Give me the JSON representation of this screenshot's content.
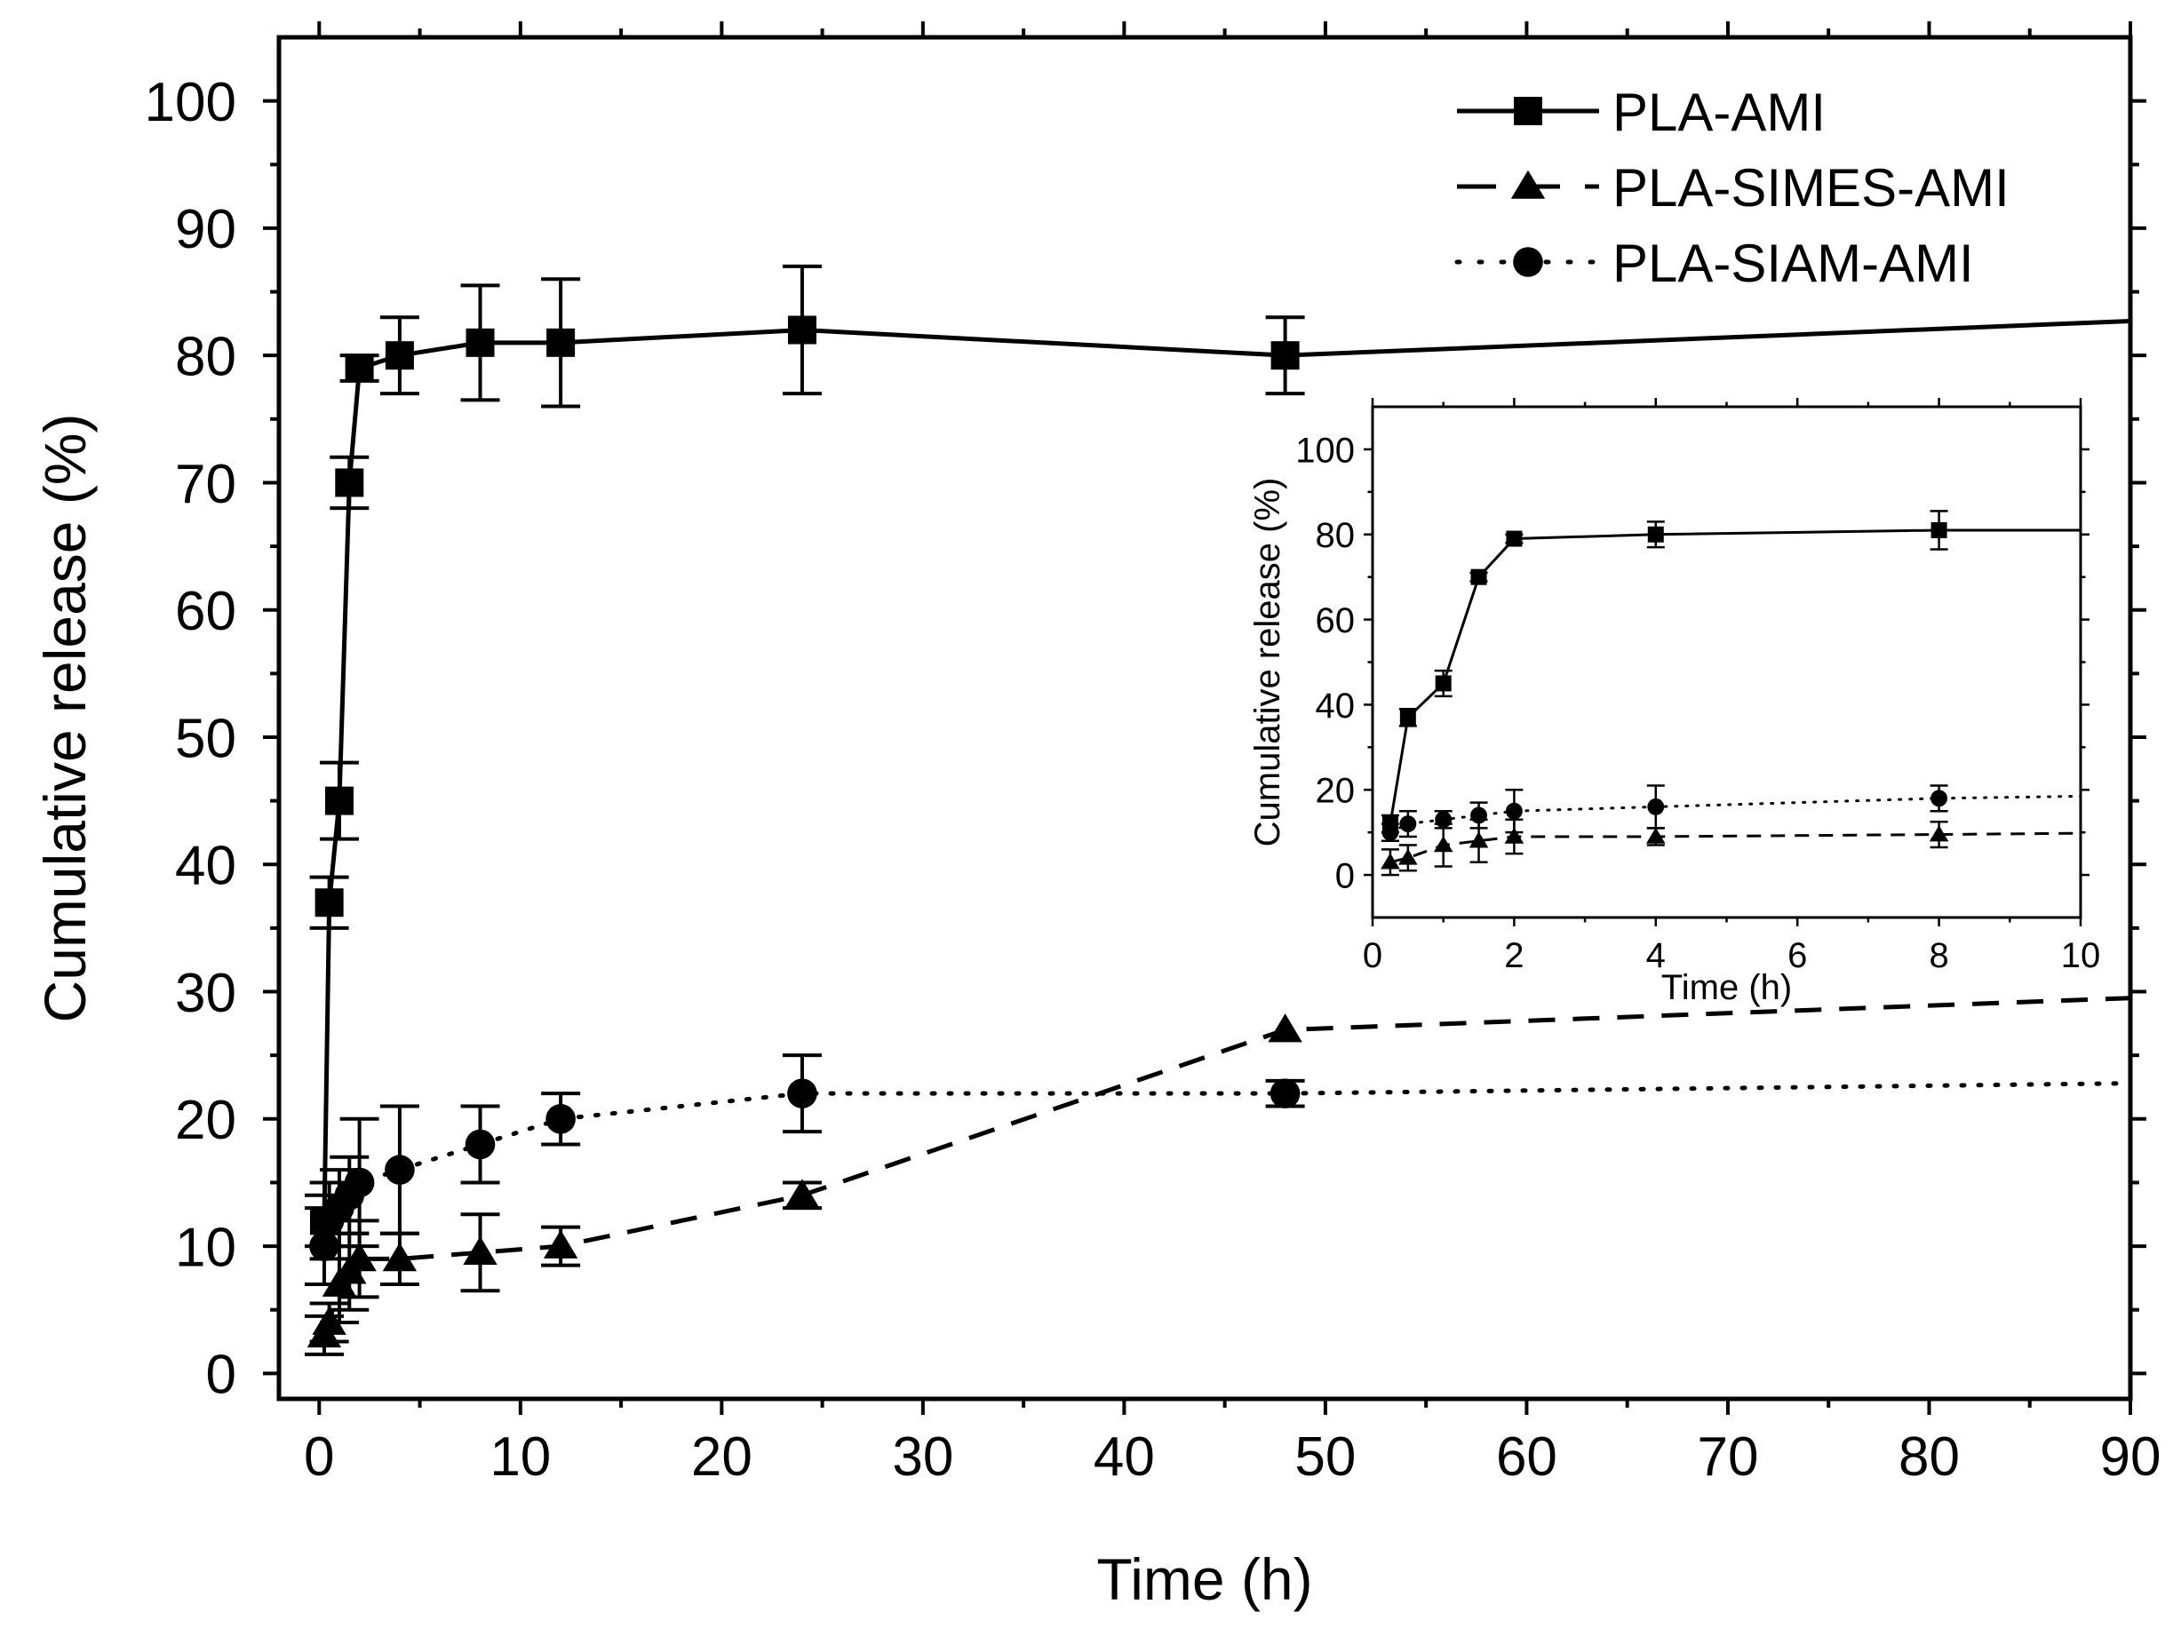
{
  "chart_data": [
    {
      "type": "line",
      "xlabel": "Time (h)",
      "ylabel": "Cumulative release (%)",
      "xlim": [
        -2,
        90
      ],
      "ylim": [
        -2,
        105
      ],
      "xticks": [
        0,
        10,
        20,
        30,
        40,
        50,
        60,
        70,
        80,
        90
      ],
      "yticks": [
        0,
        10,
        20,
        30,
        40,
        50,
        60,
        70,
        80,
        90,
        100
      ],
      "legend": {
        "position": "top-right",
        "entries": [
          "PLA-AMI",
          "PLA-SIMES-AMI",
          "PLA-SIAM-AMI"
        ]
      },
      "series": [
        {
          "name": "PLA-AMI",
          "line": "solid",
          "marker": "square",
          "x": [
            0.25,
            0.5,
            1,
            1.5,
            2,
            4,
            8,
            12,
            24,
            48,
            90
          ],
          "y": [
            12,
            37,
            45,
            70,
            79,
            80,
            81,
            81,
            82,
            80,
            82.7
          ],
          "err": [
            2,
            2,
            3,
            2,
            1,
            3,
            4.5,
            5,
            5,
            3,
            null
          ]
        },
        {
          "name": "PLA-SIMES-AMI",
          "line": "dashed",
          "marker": "triangle",
          "x": [
            0.25,
            0.5,
            1,
            1.5,
            2,
            4,
            8,
            12,
            24,
            48,
            90
          ],
          "y": [
            3,
            4,
            7,
            8,
            9,
            9,
            9.5,
            10,
            14,
            27,
            29.5
          ],
          "err": [
            1.5,
            1.5,
            3,
            3,
            3,
            2,
            3,
            1.5,
            1,
            0,
            null
          ]
        },
        {
          "name": "PLA-SIAM-AMI",
          "line": "dotted",
          "marker": "circle",
          "x": [
            0.25,
            0.5,
            1,
            1.5,
            2,
            4,
            8,
            12,
            24,
            48,
            90
          ],
          "y": [
            10,
            12,
            13,
            14,
            15,
            16,
            18,
            20,
            22,
            22,
            22.8
          ],
          "err": [
            3,
            3,
            3,
            3,
            5,
            5,
            3,
            2,
            3,
            1,
            null
          ]
        }
      ]
    },
    {
      "type": "line",
      "role": "inset",
      "xlabel": "Time (h)",
      "ylabel": "Cumulative release (%)",
      "xlim": [
        0,
        10
      ],
      "ylim": [
        -10,
        110
      ],
      "xticks": [
        0,
        2,
        4,
        6,
        8,
        10
      ],
      "yticks": [
        0,
        20,
        40,
        60,
        80,
        100
      ],
      "series": [
        {
          "name": "PLA-AMI",
          "line": "solid",
          "marker": "square",
          "x": [
            0.25,
            0.5,
            1,
            1.5,
            2,
            4,
            8,
            10
          ],
          "y": [
            12,
            37,
            45,
            70,
            79,
            80,
            81,
            81
          ],
          "err": [
            2,
            2,
            3,
            1,
            1,
            3,
            4.5,
            null
          ]
        },
        {
          "name": "PLA-SIMES-AMI",
          "line": "dashed",
          "marker": "triangle",
          "x": [
            0.25,
            0.5,
            1,
            1.5,
            2,
            4,
            8,
            10
          ],
          "y": [
            3,
            4,
            7,
            8,
            9,
            9,
            9.5,
            9.8
          ],
          "err": [
            3,
            3,
            5,
            5,
            4,
            2,
            3,
            null
          ]
        },
        {
          "name": "PLA-SIAM-AMI",
          "line": "dotted",
          "marker": "circle",
          "x": [
            0.25,
            0.5,
            1,
            1.5,
            2,
            4,
            8,
            10
          ],
          "y": [
            10,
            12,
            13,
            14,
            15,
            16,
            18,
            18.5
          ],
          "err": [
            2,
            3,
            2,
            3,
            5,
            5,
            3,
            null
          ]
        }
      ]
    }
  ]
}
